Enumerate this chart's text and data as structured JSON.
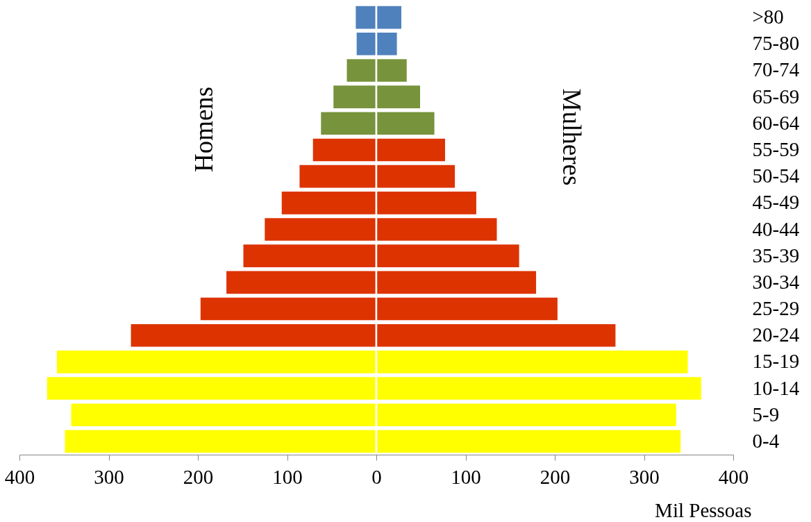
{
  "chart_data": {
    "type": "bar",
    "orientation": "horizontal",
    "stacked": true,
    "xlabel": "Mil Pessoas",
    "categories": [
      ">80",
      "75-80",
      "70-74",
      "65-69",
      "60-64",
      "55-59",
      "50-54",
      "45-49",
      "40-44",
      "35-39",
      "30-34",
      "25-29",
      "20-24",
      "15-19",
      "10-14",
      "5-9",
      "0-4"
    ],
    "xlim": [
      -400,
      400
    ],
    "xticks": [
      {
        "value": -400,
        "label": "400"
      },
      {
        "value": -300,
        "label": "300"
      },
      {
        "value": -200,
        "label": "200"
      },
      {
        "value": -100,
        "label": "100"
      },
      0,
      100,
      200,
      300,
      400
    ],
    "series": [
      {
        "name": "Homens",
        "colors": [
          "#4f81bd",
          "#4f81bd",
          "#77933c",
          "#77933c",
          "#77933c",
          "#dd3300",
          "#dd3300",
          "#dd3300",
          "#dd3300",
          "#dd3300",
          "#dd3300",
          "#dd3300",
          "#dd3300",
          "#ffff00",
          "#ffff00",
          "#ffff00",
          "#ffff00"
        ],
        "values": [
          -24,
          -23,
          -34,
          -49,
          -63,
          -72,
          -87,
          -107,
          -126,
          -150,
          -169,
          -198,
          -276,
          -359,
          -370,
          -343,
          -350
        ]
      },
      {
        "name": "Mulheres",
        "colors": [
          "#4f81bd",
          "#4f81bd",
          "#77933c",
          "#77933c",
          "#77933c",
          "#dd3300",
          "#dd3300",
          "#dd3300",
          "#dd3300",
          "#dd3300",
          "#dd3300",
          "#dd3300",
          "#dd3300",
          "#ffff00",
          "#ffff00",
          "#ffff00",
          "#ffff00"
        ],
        "values": [
          29,
          24,
          35,
          50,
          66,
          78,
          89,
          113,
          136,
          161,
          180,
          204,
          269,
          350,
          365,
          337,
          342
        ]
      }
    ]
  }
}
